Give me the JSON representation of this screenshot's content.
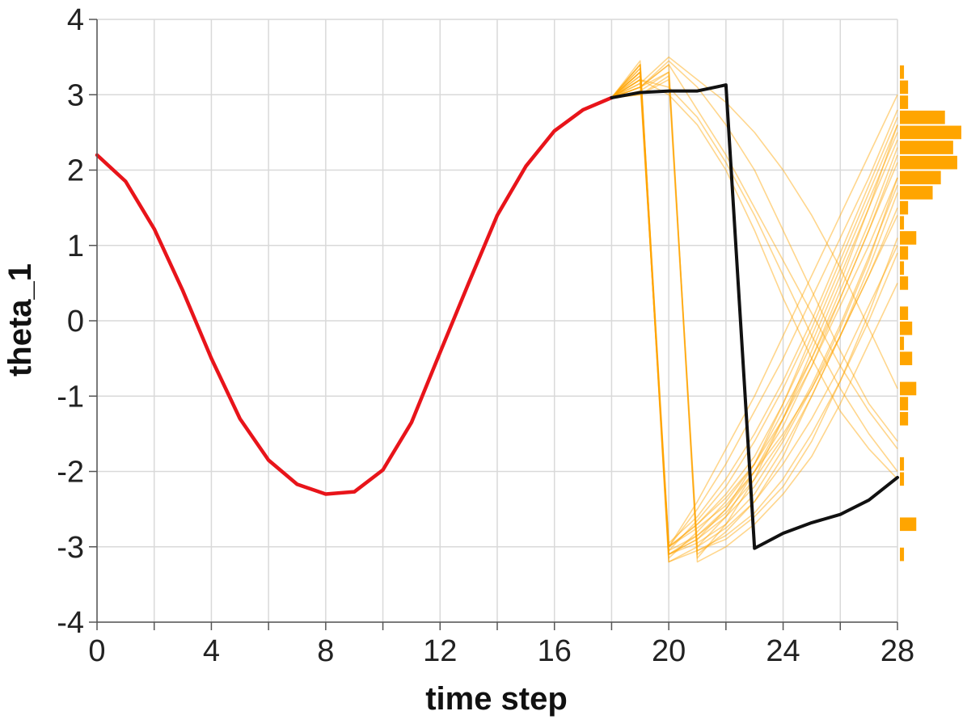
{
  "chart_data": {
    "type": "line",
    "xlabel": "time step",
    "ylabel": "theta_1",
    "xlim": [
      0,
      28
    ],
    "ylim": [
      -4,
      4
    ],
    "x_ticks": [
      0,
      4,
      8,
      12,
      16,
      20,
      24,
      28
    ],
    "x_tick_labels": [
      "0",
      "4",
      "8",
      "12",
      "16",
      "20",
      "24",
      "28"
    ],
    "y_ticks": [
      4,
      3,
      2,
      1,
      0,
      -1,
      -2,
      -3,
      -4
    ],
    "y_tick_labels": [
      "4",
      "3",
      "2",
      "1",
      "0",
      "-1",
      "-2",
      "-3",
      "-4"
    ],
    "grid": true,
    "colors": {
      "observed": "#e8141a",
      "chosen": "#111111",
      "samples": "#ffa500",
      "histogram": "#ffa500"
    },
    "series": [
      {
        "role": "observed",
        "x": [
          0,
          1,
          2,
          3,
          4,
          5,
          6,
          7,
          8,
          9,
          10,
          11,
          12,
          13,
          14,
          15,
          16,
          17,
          18
        ],
        "values": [
          2.2,
          1.85,
          1.22,
          0.4,
          -0.5,
          -1.3,
          -1.85,
          -2.17,
          -2.3,
          -2.27,
          -1.98,
          -1.35,
          -0.42,
          0.5,
          1.4,
          2.05,
          2.52,
          2.8,
          2.96
        ]
      },
      {
        "role": "chosen",
        "x": [
          18,
          19,
          20,
          21,
          22,
          23,
          24,
          25,
          26,
          27,
          28
        ],
        "values": [
          2.96,
          3.03,
          3.05,
          3.05,
          3.13,
          -3.02,
          -2.82,
          -2.68,
          -2.57,
          -2.38,
          -2.08
        ]
      },
      {
        "role": "samples",
        "x": [
          18,
          19,
          20,
          21,
          22,
          23,
          24,
          25,
          26,
          27,
          28
        ],
        "values": [
          [
            2.96,
            3.4,
            -3.1,
            -2.9,
            -2.6,
            -2.2,
            -1.6,
            -0.9,
            -0.1,
            0.8,
            1.9
          ],
          [
            2.96,
            3.3,
            -3.0,
            -2.7,
            -2.3,
            -1.8,
            -1.1,
            -0.3,
            0.6,
            1.5,
            2.4
          ],
          [
            2.96,
            3.2,
            -3.05,
            -2.85,
            -2.5,
            -2.0,
            -1.4,
            -0.6,
            0.3,
            1.2,
            2.2
          ],
          [
            2.96,
            3.1,
            3.3,
            -3.1,
            -2.8,
            -2.4,
            -1.8,
            -1.0,
            -0.2,
            0.7,
            1.7
          ],
          [
            2.96,
            3.0,
            3.2,
            -3.15,
            -2.7,
            -2.1,
            -1.3,
            -0.4,
            0.5,
            1.5,
            2.6
          ],
          [
            2.96,
            3.35,
            -2.95,
            -2.6,
            -2.1,
            -1.5,
            -0.8,
            0.0,
            0.9,
            1.8,
            2.7
          ],
          [
            2.96,
            3.25,
            -3.1,
            -2.95,
            -2.7,
            -2.3,
            -1.7,
            -1.0,
            -0.2,
            0.6,
            1.5
          ],
          [
            2.96,
            3.15,
            3.5,
            3.2,
            2.9,
            2.5,
            2.0,
            1.4,
            0.7,
            -0.1,
            -0.9
          ],
          [
            2.96,
            3.1,
            3.4,
            2.8,
            2.2,
            1.5,
            0.8,
            0.1,
            -0.6,
            -1.2,
            -1.7
          ],
          [
            2.96,
            3.45,
            -3.2,
            -3.0,
            -2.75,
            -2.4,
            -1.9,
            -1.3,
            -0.6,
            0.2,
            1.0
          ],
          [
            2.96,
            3.2,
            -3.0,
            -2.5,
            -1.9,
            -1.2,
            -0.5,
            0.3,
            1.1,
            1.9,
            2.8
          ],
          [
            2.96,
            3.3,
            -3.15,
            -2.8,
            -2.4,
            -1.9,
            -1.2,
            -0.5,
            0.3,
            1.2,
            2.1
          ],
          [
            2.96,
            3.05,
            3.3,
            -3.05,
            -2.9,
            -2.6,
            -2.2,
            -1.6,
            -0.8,
            0.1,
            1.1
          ],
          [
            2.96,
            3.4,
            -3.0,
            -2.75,
            -2.45,
            -2.0,
            -1.5,
            -0.9,
            -0.2,
            0.6,
            1.4
          ],
          [
            2.96,
            3.2,
            3.1,
            2.7,
            2.1,
            1.4,
            0.6,
            -0.2,
            -0.9,
            -1.5,
            -2.0
          ],
          [
            2.96,
            3.25,
            -3.1,
            -2.9,
            -2.5,
            -1.9,
            -1.1,
            -0.2,
            0.7,
            1.6,
            2.5
          ],
          [
            2.96,
            3.1,
            3.4,
            -3.2,
            -3.0,
            -2.7,
            -2.3,
            -1.8,
            -1.1,
            -0.3,
            0.5
          ],
          [
            2.96,
            3.35,
            -3.05,
            -2.65,
            -2.2,
            -1.6,
            -0.9,
            -0.1,
            0.8,
            1.7,
            2.6
          ],
          [
            2.96,
            3.2,
            3.0,
            2.6,
            2.0,
            1.2,
            0.3,
            -0.5,
            -1.2,
            -1.7,
            -2.1
          ],
          [
            2.96,
            3.3,
            -3.2,
            -3.05,
            -2.85,
            -2.55,
            -2.1,
            -1.5,
            -0.8,
            0.0,
            0.9
          ],
          [
            2.96,
            3.15,
            -3.0,
            -2.4,
            -1.7,
            -1.0,
            -0.2,
            0.6,
            1.4,
            2.2,
            3.0
          ],
          [
            2.96,
            3.4,
            -3.1,
            -2.85,
            -2.55,
            -2.1,
            -1.55,
            -0.85,
            -0.05,
            0.85,
            1.8
          ],
          [
            2.96,
            3.0,
            3.25,
            -3.0,
            -2.6,
            -2.0,
            -1.3,
            -0.5,
            0.4,
            1.3,
            2.3
          ],
          [
            2.96,
            3.3,
            -3.0,
            -2.7,
            -2.35,
            -1.9,
            -1.3,
            -0.6,
            0.2,
            1.0,
            1.9
          ],
          [
            2.96,
            3.1,
            3.45,
            3.1,
            2.6,
            2.0,
            1.2,
            0.4,
            -0.4,
            -1.1,
            -1.6
          ]
        ]
      }
    ],
    "histogram": {
      "orientation": "horizontal",
      "bin_centers": [
        3.3,
        3.1,
        2.9,
        2.7,
        2.5,
        2.3,
        2.1,
        1.9,
        1.7,
        1.5,
        1.3,
        1.1,
        0.9,
        0.7,
        0.5,
        0.1,
        -0.1,
        -0.3,
        -0.5,
        -0.9,
        -1.1,
        -1.3,
        -1.9,
        -2.1,
        -2.7,
        -3.1
      ],
      "counts": [
        1,
        2,
        2,
        11,
        15,
        13,
        14,
        10,
        8,
        2,
        1,
        4,
        2,
        1,
        2,
        2,
        3,
        1,
        3,
        4,
        2,
        2,
        1,
        1,
        4,
        1
      ]
    }
  }
}
